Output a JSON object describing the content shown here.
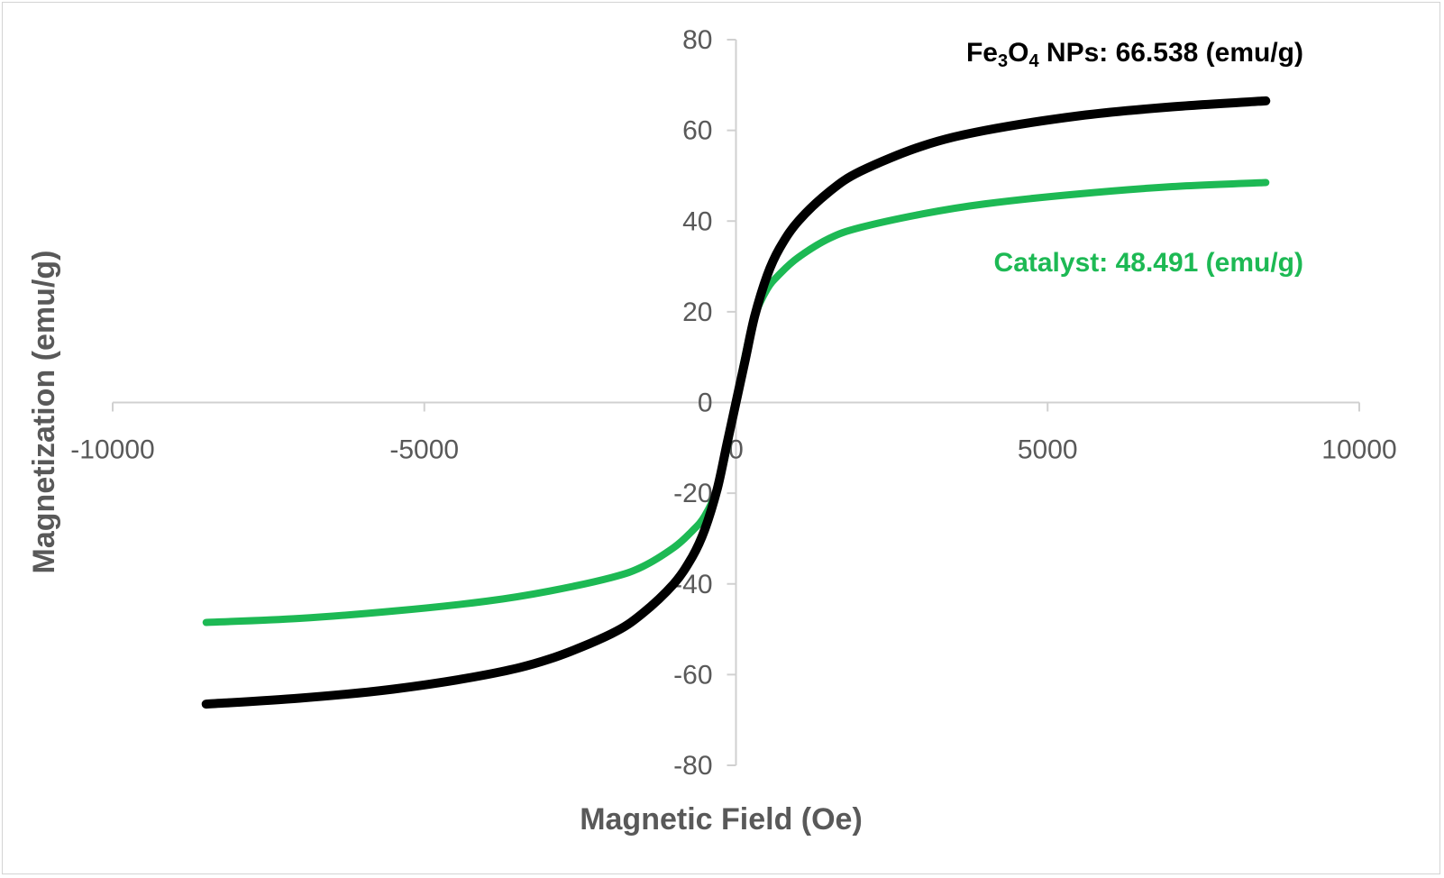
{
  "chart_data": {
    "type": "line",
    "title": "",
    "xlabel": "Magnetic Field (Oe)",
    "ylabel": "Magnetization (emu/g)",
    "xlim": [
      -10000,
      10000
    ],
    "ylim": [
      -80,
      80
    ],
    "x_ticks": [
      -10000,
      -5000,
      0,
      5000,
      10000
    ],
    "y_ticks": [
      -80,
      -60,
      -40,
      -20,
      0,
      20,
      40,
      60,
      80
    ],
    "grid": false,
    "legend": "none",
    "annotations": [
      {
        "parts": [
          "Fe",
          "3",
          "O",
          "4",
          " NPs: 66.538 (emu/g)"
        ],
        "color": "#000000"
      },
      {
        "text": "Catalyst: 48.491 (emu/g)",
        "color": "#1db954"
      }
    ],
    "series": [
      {
        "color": "#000000",
        "x": [
          -8500,
          -7000,
          -5500,
          -4000,
          -3000,
          -2000,
          -1500,
          -1000,
          -700,
          -500,
          -300,
          -150,
          0,
          150,
          300,
          500,
          700,
          1000,
          1500,
          2000,
          3000,
          4000,
          5500,
          7000,
          8500
        ],
        "y": [
          -66.5,
          -65.2,
          -63.2,
          -60.0,
          -56.6,
          -51.0,
          -46.5,
          -40.0,
          -34.0,
          -28.0,
          -19.0,
          -9.5,
          0,
          9.5,
          19.0,
          28.0,
          34.0,
          40.0,
          46.5,
          51.0,
          56.6,
          60.0,
          63.2,
          65.2,
          66.5
        ]
      },
      {
        "color": "#1db954",
        "x": [
          -8500,
          -7000,
          -5500,
          -4000,
          -3000,
          -2000,
          -1500,
          -1000,
          -700,
          -500,
          -300,
          -150,
          0,
          150,
          300,
          500,
          700,
          1000,
          1500,
          2000,
          3000,
          4000,
          5500,
          7000,
          8500
        ],
        "y": [
          -48.5,
          -47.6,
          -46.0,
          -43.8,
          -41.6,
          -38.6,
          -36.2,
          -32.0,
          -28.3,
          -25.0,
          -19.0,
          -10.5,
          0,
          10.5,
          19.0,
          25.0,
          28.3,
          32.0,
          36.2,
          38.6,
          41.6,
          43.8,
          46.0,
          47.6,
          48.5
        ]
      }
    ]
  }
}
